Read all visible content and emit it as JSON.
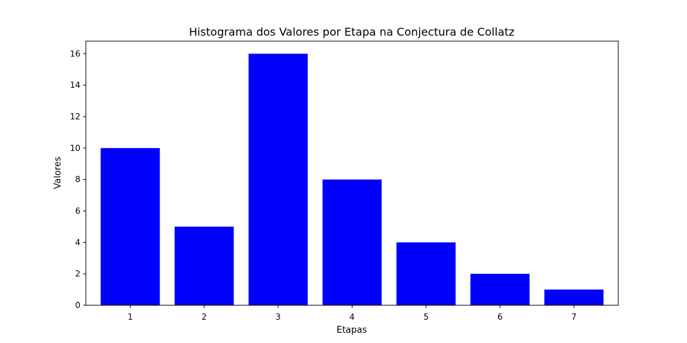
{
  "chart_data": {
    "type": "bar",
    "title": "Histograma dos Valores por Etapa na Conjectura de Collatz",
    "xlabel": "Etapas",
    "ylabel": "Valores",
    "categories": [
      "1",
      "2",
      "3",
      "4",
      "5",
      "6",
      "7"
    ],
    "values": [
      10,
      5,
      16,
      8,
      4,
      2,
      1
    ],
    "ylim": [
      0,
      16.8
    ],
    "yticks": [
      0,
      2,
      4,
      6,
      8,
      10,
      12,
      14,
      16
    ],
    "bar_color": "#0000ff",
    "grid": false,
    "legend": "none"
  }
}
